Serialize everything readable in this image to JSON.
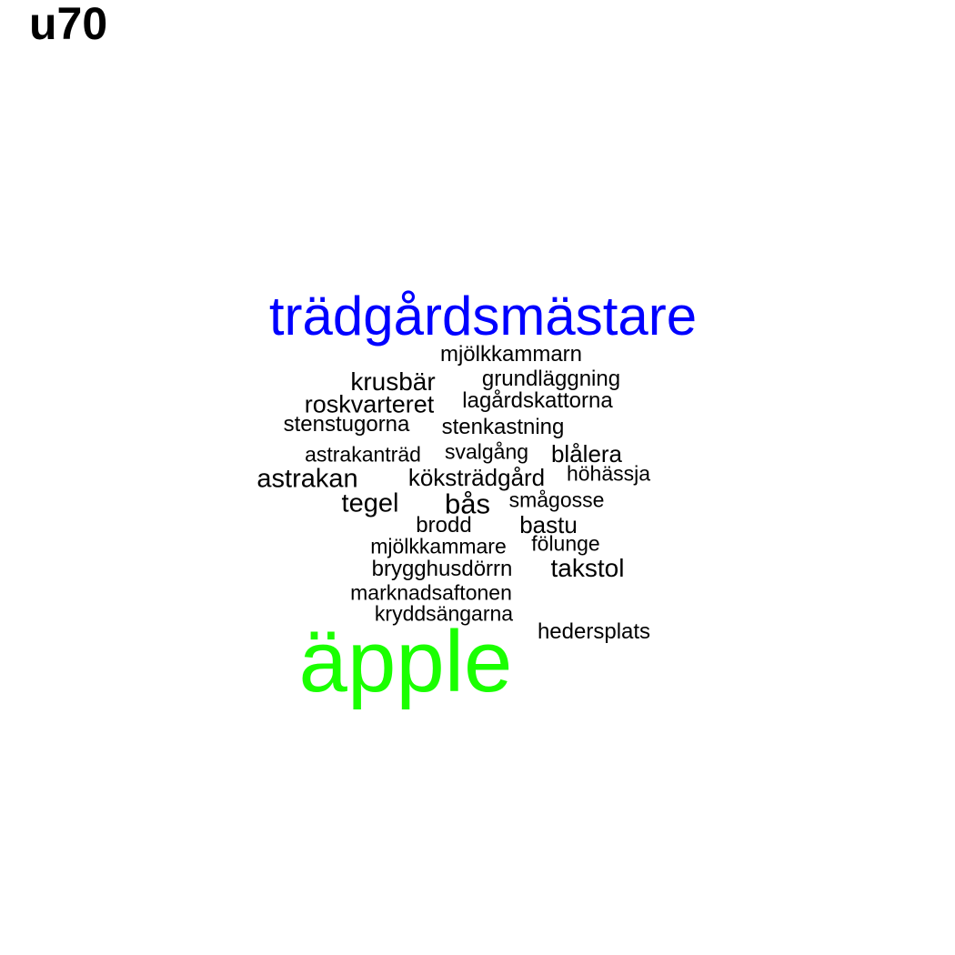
{
  "title": "u70",
  "colors": {
    "large_primary": "#0000ff",
    "large_secondary": "#1aff00",
    "default": "#000000"
  },
  "words": [
    {
      "text": "trädgårdsmästare",
      "color": "#0000ff"
    },
    {
      "text": "mjölkkammarn",
      "color": "#000000"
    },
    {
      "text": "krusbär",
      "color": "#000000"
    },
    {
      "text": "grundläggning",
      "color": "#000000"
    },
    {
      "text": "roskvarteret",
      "color": "#000000"
    },
    {
      "text": "lagårdskattorna",
      "color": "#000000"
    },
    {
      "text": "stenstugorna",
      "color": "#000000"
    },
    {
      "text": "stenkastning",
      "color": "#000000"
    },
    {
      "text": "astrakanträd",
      "color": "#000000"
    },
    {
      "text": "svalgång",
      "color": "#000000"
    },
    {
      "text": "blålera",
      "color": "#000000"
    },
    {
      "text": "astrakan",
      "color": "#000000"
    },
    {
      "text": "köksträdgård",
      "color": "#000000"
    },
    {
      "text": "höhässja",
      "color": "#000000"
    },
    {
      "text": "tegel",
      "color": "#000000"
    },
    {
      "text": "bås",
      "color": "#000000"
    },
    {
      "text": "smågosse",
      "color": "#000000"
    },
    {
      "text": "brodd",
      "color": "#000000"
    },
    {
      "text": "bastu",
      "color": "#000000"
    },
    {
      "text": "mjölkkammare",
      "color": "#000000"
    },
    {
      "text": "fölunge",
      "color": "#000000"
    },
    {
      "text": "brygghusdörrn",
      "color": "#000000"
    },
    {
      "text": "takstol",
      "color": "#000000"
    },
    {
      "text": "marknadsaftonen",
      "color": "#000000"
    },
    {
      "text": "kryddsängarna",
      "color": "#000000"
    },
    {
      "text": "hedersplats",
      "color": "#000000"
    },
    {
      "text": "äpple",
      "color": "#1aff00"
    }
  ]
}
